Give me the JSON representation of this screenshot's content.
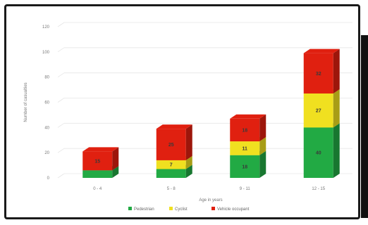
{
  "chart_data": {
    "type": "bar",
    "stacked": true,
    "style": "3d-column",
    "categories": [
      "0 - 4",
      "5 - 8",
      "9 - 11",
      "12 - 15"
    ],
    "series": [
      {
        "name": "Pedestrian",
        "color": "#22aa44",
        "values": [
          6,
          7,
          18,
          40
        ]
      },
      {
        "name": "Cyclist",
        "color": "#f0e020",
        "values": [
          0,
          7,
          11,
          27
        ]
      },
      {
        "name": "Vehicle occupant",
        "color": "#e02010",
        "values": [
          15,
          25,
          18,
          32
        ]
      }
    ],
    "segment_labels": [
      [
        "",
        "",
        "15"
      ],
      [
        "",
        "7",
        "25"
      ],
      [
        "18",
        "11",
        "18"
      ],
      [
        "40",
        "27",
        "32"
      ]
    ],
    "xlabel": "Age in years",
    "ylabel": "Number of casualties",
    "ylim": [
      0,
      120
    ],
    "yticks": [
      0,
      20,
      40,
      60,
      80,
      100,
      120
    ],
    "grid": true,
    "legend": "bottom"
  }
}
